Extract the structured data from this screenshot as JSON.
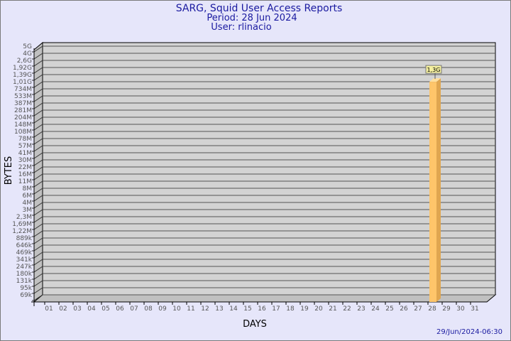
{
  "chart_data": {
    "type": "bar",
    "title": "SARG, Squid User Access Reports",
    "subtitle": [
      "Period: 28 Jun 2024",
      "User: rlinacio"
    ],
    "xlabel": "DAYS",
    "ylabel": "BYTES",
    "y_scale": "log",
    "y_tick_labels": [
      "5G",
      "4G",
      "2,6G",
      "1,92G",
      "1,39G",
      "1,01G",
      "734M",
      "533M",
      "387M",
      "281M",
      "204M",
      "148M",
      "108M",
      "78M",
      "57M",
      "41M",
      "30M",
      "22M",
      "16M",
      "11M",
      "8M",
      "6M",
      "4M",
      "3M",
      "2,3M",
      "1,69M",
      "1,22M",
      "889k",
      "646k",
      "469k",
      "341k",
      "247k",
      "180k",
      "131k",
      "95k",
      "69k"
    ],
    "categories": [
      "01",
      "02",
      "03",
      "04",
      "05",
      "06",
      "07",
      "08",
      "09",
      "10",
      "11",
      "12",
      "13",
      "14",
      "15",
      "16",
      "17",
      "18",
      "19",
      "20",
      "21",
      "22",
      "23",
      "24",
      "25",
      "26",
      "27",
      "28",
      "29",
      "30",
      "31"
    ],
    "bars": [
      {
        "day": "28",
        "value_bytes": 1300000000,
        "label": "1,3G"
      }
    ],
    "grid": true,
    "colors": {
      "bar": "#ffc56a",
      "bar_side": "#e0a650",
      "plot": "#d3d3d3",
      "title": "#1a1aa0",
      "background": "#e6e6fa"
    }
  },
  "footer": {
    "timestamp": "29/Jun/2024-06:30"
  }
}
